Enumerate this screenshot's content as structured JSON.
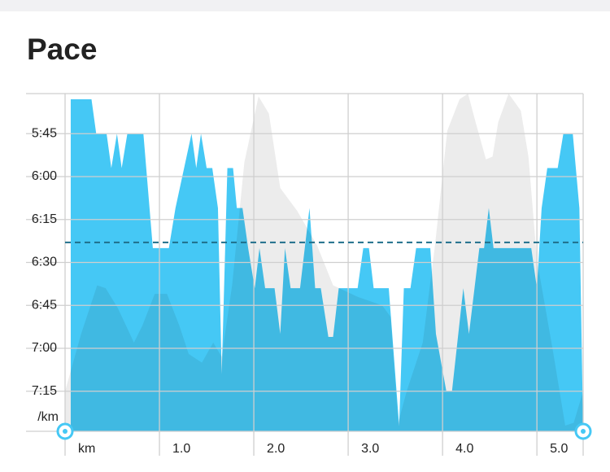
{
  "chart_data": {
    "type": "area",
    "title": "Pace",
    "y_unit_label": "/km",
    "x_unit_label": "km",
    "y_inverted": true,
    "grid": true,
    "xlim": [
      0,
      5.49
    ],
    "ylim": [
      331,
      449
    ],
    "xticks": [
      {
        "value": 1,
        "label": "1.0"
      },
      {
        "value": 2,
        "label": "2.0"
      },
      {
        "value": 3,
        "label": "3.0"
      },
      {
        "value": 4,
        "label": "4.0"
      },
      {
        "value": 5,
        "label": "5.0"
      }
    ],
    "yticks": [
      {
        "value": 345,
        "label": "5:45"
      },
      {
        "value": 360,
        "label": "6:00"
      },
      {
        "value": 375,
        "label": "6:15"
      },
      {
        "value": 390,
        "label": "6:30"
      },
      {
        "value": 405,
        "label": "6:45"
      },
      {
        "value": 420,
        "label": "7:00"
      },
      {
        "value": 435,
        "label": "7:15"
      }
    ],
    "average_line": {
      "value": 383,
      "color": "#1f6f8b"
    },
    "series": [
      {
        "color": "#ececec",
        "x": [
          0,
          0.17,
          0.34,
          0.43,
          0.56,
          0.73,
          0.82,
          0.95,
          1.08,
          1.21,
          1.31,
          1.45,
          1.57,
          1.66,
          1.77,
          1.9,
          2.05,
          2.16,
          2.28,
          2.46,
          2.67,
          2.84,
          3.1,
          3.36,
          3.45,
          3.53,
          3.62,
          3.79,
          3.92,
          4.05,
          4.18,
          4.27,
          4.35,
          4.46,
          4.53,
          4.59,
          4.7,
          4.83,
          4.91,
          5.0,
          5.17,
          5.3,
          5.39,
          5.49
        ],
        "values": [
          435,
          415,
          398,
          399,
          406,
          418,
          412,
          401,
          401,
          412,
          422,
          425,
          418,
          423,
          398,
          355,
          332,
          338,
          364,
          372,
          384,
          398,
          402,
          405,
          409,
          446,
          435,
          418,
          384,
          344,
          333,
          331,
          341,
          354,
          353,
          341,
          331,
          337,
          353,
          389,
          421,
          447,
          446,
          435
        ]
      },
      {
        "color": "#45c8f5",
        "x": [
          0.06,
          0.28,
          0.33,
          0.44,
          0.49,
          0.55,
          0.6,
          0.66,
          0.83,
          0.93,
          1.1,
          1.17,
          1.34,
          1.39,
          1.44,
          1.5,
          1.56,
          1.62,
          1.66,
          1.72,
          1.78,
          1.82,
          1.88,
          1.94,
          2.01,
          2.06,
          2.12,
          2.22,
          2.28,
          2.33,
          2.39,
          2.49,
          2.59,
          2.65,
          2.71,
          2.79,
          2.84,
          2.9,
          3.1,
          3.16,
          3.22,
          3.27,
          3.43,
          3.54,
          3.59,
          3.66,
          3.72,
          3.87,
          3.93,
          4.04,
          4.1,
          4.22,
          4.28,
          4.39,
          4.44,
          4.49,
          4.54,
          4.94,
          5.0,
          5.05,
          5.11,
          5.22,
          5.28,
          5.38,
          5.45,
          5.49
        ],
        "values": [
          333,
          333,
          345,
          345,
          357,
          345,
          357,
          345,
          345,
          385,
          385,
          371,
          345,
          357,
          345,
          357,
          357,
          371,
          429,
          357,
          357,
          371,
          371,
          385,
          399,
          385,
          399,
          399,
          415,
          385,
          399,
          399,
          371,
          399,
          399,
          416,
          416,
          399,
          399,
          385,
          385,
          399,
          399,
          447,
          399,
          399,
          385,
          385,
          415,
          435,
          435,
          399,
          415,
          385,
          385,
          371,
          385,
          385,
          399,
          371,
          357,
          357,
          345,
          345,
          371,
          449
        ]
      }
    ]
  }
}
